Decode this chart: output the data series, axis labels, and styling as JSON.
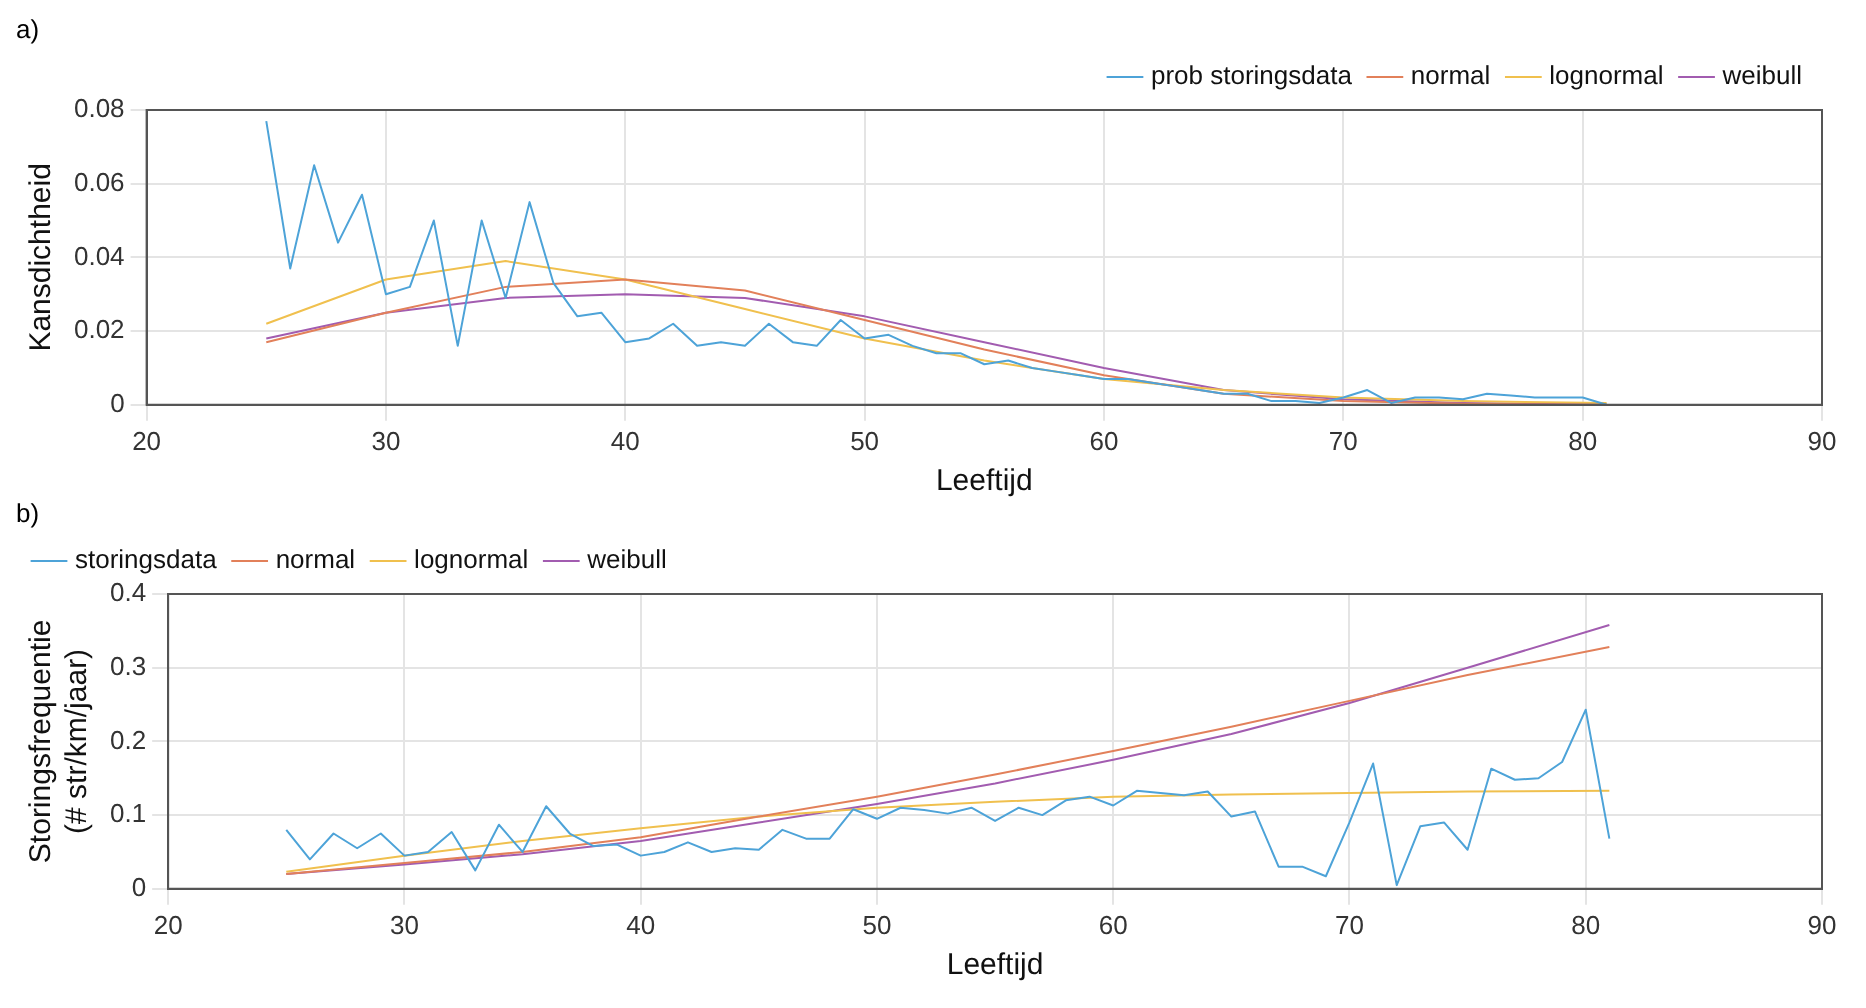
{
  "chart_data": [
    {
      "type": "line",
      "annotations": [
        "a)"
      ],
      "xlabel": "Leeftijd",
      "ylabel": "Kansdichtheid",
      "x": [
        25,
        26,
        27,
        28,
        29,
        30,
        31,
        32,
        33,
        34,
        35,
        36,
        37,
        38,
        39,
        40,
        41,
        42,
        43,
        44,
        45,
        46,
        47,
        48,
        49,
        50,
        51,
        52,
        53,
        54,
        55,
        56,
        57,
        58,
        59,
        60,
        61,
        62,
        63,
        64,
        65,
        66,
        67,
        68,
        69,
        70,
        71,
        72,
        73,
        74,
        75,
        76,
        77,
        78,
        79,
        80,
        81
      ],
      "series": [
        {
          "name": "prob storingsdata",
          "color": "#4da3d8",
          "values": [
            0.077,
            0.037,
            0.065,
            0.044,
            0.057,
            0.03,
            0.032,
            0.05,
            0.016,
            0.05,
            0.029,
            0.055,
            0.033,
            0.024,
            0.025,
            0.017,
            0.018,
            0.022,
            0.016,
            0.017,
            0.016,
            0.022,
            0.017,
            0.016,
            0.023,
            0.018,
            0.019,
            0.016,
            0.014,
            0.014,
            0.011,
            0.012,
            0.01,
            0.009,
            0.008,
            0.007,
            0.007,
            0.006,
            0.005,
            0.004,
            0.003,
            0.003,
            0.001,
            0.001,
            0.0005,
            0.002,
            0.004,
            0.0005,
            0.002,
            0.002,
            0.0015,
            0.003,
            0.0025,
            0.002,
            0.002,
            0.002,
            0.0
          ]
        },
        {
          "name": "normal",
          "color": "#e2805a",
          "x": [
            25,
            30,
            35,
            40,
            45,
            50,
            55,
            60,
            65,
            70,
            75,
            81
          ],
          "values": [
            0.017,
            0.025,
            0.032,
            0.034,
            0.031,
            0.023,
            0.015,
            0.008,
            0.003,
            0.001,
            0.0003,
            0.0
          ]
        },
        {
          "name": "lognormal",
          "color": "#f0c04e",
          "x": [
            25,
            30,
            35,
            40,
            45,
            50,
            55,
            60,
            65,
            70,
            75,
            81
          ],
          "values": [
            0.022,
            0.034,
            0.039,
            0.034,
            0.026,
            0.018,
            0.012,
            0.007,
            0.004,
            0.002,
            0.001,
            0.0005
          ]
        },
        {
          "name": "weibull",
          "color": "#a25cb0",
          "x": [
            25,
            30,
            35,
            40,
            45,
            50,
            55,
            60,
            65,
            70,
            75,
            81
          ],
          "values": [
            0.018,
            0.025,
            0.029,
            0.03,
            0.029,
            0.024,
            0.017,
            0.01,
            0.004,
            0.0015,
            0.0005,
            0.0
          ]
        }
      ],
      "xlim": [
        20,
        90
      ],
      "xticks": [
        20,
        30,
        40,
        50,
        60,
        70,
        80,
        90
      ],
      "ylim": [
        0,
        0.08
      ],
      "yticks": [
        0,
        0.02,
        0.04,
        0.06,
        0.08
      ],
      "grid": true,
      "legend": "top right"
    },
    {
      "type": "line",
      "annotations": [
        "b)"
      ],
      "xlabel": "Leeftijd",
      "ylabel": "Storingsfrequentie\n(# str/km/jaar)",
      "x": [
        25,
        26,
        27,
        28,
        29,
        30,
        31,
        32,
        33,
        34,
        35,
        36,
        37,
        38,
        39,
        40,
        41,
        42,
        43,
        44,
        45,
        46,
        47,
        48,
        49,
        50,
        51,
        52,
        53,
        54,
        55,
        56,
        57,
        58,
        59,
        60,
        61,
        62,
        63,
        64,
        65,
        66,
        67,
        68,
        69,
        70,
        71,
        72,
        73,
        74,
        75,
        76,
        77,
        78,
        79,
        80,
        81
      ],
      "series": [
        {
          "name": "storingsdata",
          "color": "#4da3d8",
          "values": [
            0.08,
            0.04,
            0.075,
            0.055,
            0.075,
            0.045,
            0.05,
            0.077,
            0.025,
            0.087,
            0.05,
            0.112,
            0.075,
            0.058,
            0.06,
            0.045,
            0.05,
            0.063,
            0.05,
            0.055,
            0.053,
            0.08,
            0.068,
            0.068,
            0.108,
            0.095,
            0.11,
            0.107,
            0.102,
            0.11,
            0.092,
            0.11,
            0.1,
            0.12,
            0.125,
            0.113,
            0.133,
            0.13,
            0.127,
            0.132,
            0.098,
            0.105,
            0.03,
            0.03,
            0.017,
            0.09,
            0.17,
            0.005,
            0.085,
            0.09,
            0.053,
            0.163,
            0.148,
            0.15,
            0.172,
            0.243,
            0.068
          ]
        },
        {
          "name": "normal",
          "color": "#e2805a",
          "x": [
            25,
            30,
            35,
            40,
            45,
            50,
            55,
            60,
            65,
            70,
            75,
            81
          ],
          "values": [
            0.02,
            0.035,
            0.05,
            0.07,
            0.098,
            0.125,
            0.155,
            0.187,
            0.22,
            0.255,
            0.29,
            0.328
          ]
        },
        {
          "name": "lognormal",
          "color": "#f0c04e",
          "x": [
            25,
            30,
            35,
            40,
            45,
            50,
            55,
            60,
            65,
            70,
            75,
            81
          ],
          "values": [
            0.023,
            0.045,
            0.065,
            0.082,
            0.098,
            0.11,
            0.118,
            0.125,
            0.128,
            0.13,
            0.132,
            0.133
          ]
        },
        {
          "name": "weibull",
          "color": "#a25cb0",
          "x": [
            25,
            30,
            35,
            40,
            45,
            50,
            55,
            60,
            65,
            70,
            75,
            81
          ],
          "values": [
            0.02,
            0.033,
            0.047,
            0.065,
            0.09,
            0.115,
            0.143,
            0.175,
            0.21,
            0.252,
            0.3,
            0.358
          ]
        }
      ],
      "xlim": [
        20,
        90
      ],
      "xticks": [
        20,
        30,
        40,
        50,
        60,
        70,
        80,
        90
      ],
      "ylim": [
        0,
        0.4
      ],
      "yticks": [
        0,
        0.1,
        0.2,
        0.3,
        0.4
      ],
      "grid": true,
      "legend": "top left"
    }
  ]
}
